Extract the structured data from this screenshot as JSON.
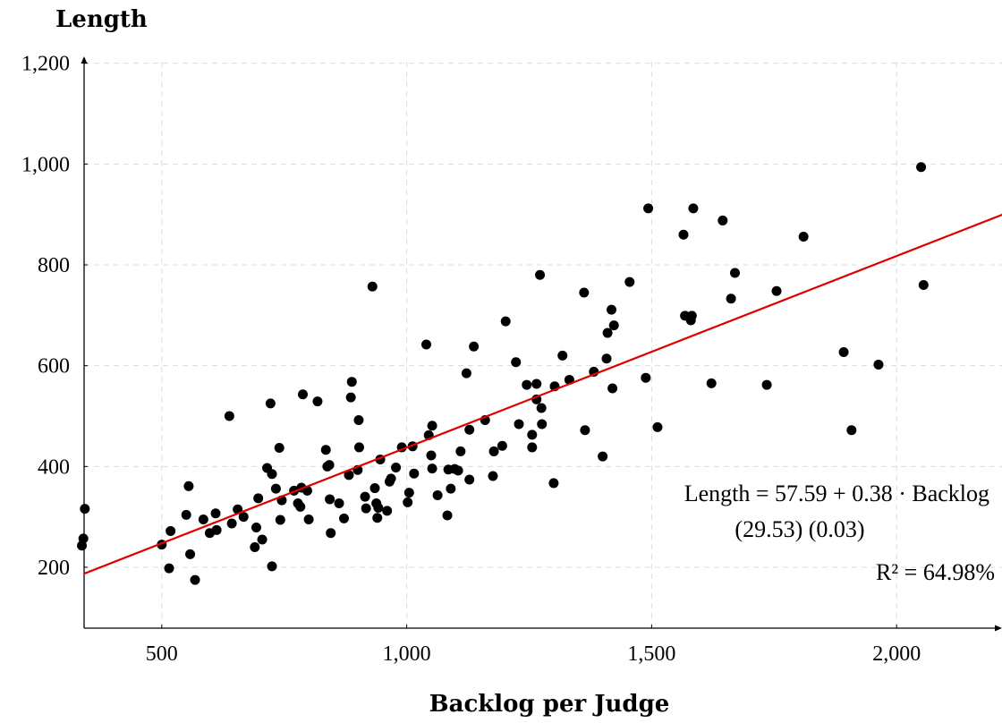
{
  "chart_data": {
    "type": "scatter",
    "title": "",
    "xlabel": "Backlog per Judge",
    "ylabel": "Length",
    "xlim": [
      340,
      2220
    ],
    "ylim": [
      80,
      1200
    ],
    "x_ticks": [
      500,
      1000,
      1500,
      2000
    ],
    "y_ticks": [
      200,
      400,
      600,
      800,
      1000,
      1200
    ],
    "x_tick_labels": [
      "500",
      "1,000",
      "1,500",
      "2,000"
    ],
    "y_tick_labels": [
      "200",
      "400",
      "600",
      "800",
      "1,000",
      "1,200"
    ],
    "grid": true,
    "colors": {
      "points": "#000000",
      "fit_line": "#e00000",
      "grid": "#dcdcdc"
    },
    "fit_line": {
      "intercept": 57.59,
      "slope": 0.38
    },
    "annotations": {
      "equation": "Length = 57.59 + 0.38 · Backlog",
      "std_errors": "(29.53)  (0.03)",
      "r_squared": "R² = 64.98%"
    },
    "points": [
      [
        343,
        316
      ],
      [
        340,
        257
      ],
      [
        337,
        243
      ],
      [
        500,
        245
      ],
      [
        515,
        198
      ],
      [
        518,
        272
      ],
      [
        550,
        304
      ],
      [
        555,
        361
      ],
      [
        558,
        226
      ],
      [
        568,
        175
      ],
      [
        585,
        295
      ],
      [
        598,
        268
      ],
      [
        610,
        307
      ],
      [
        612,
        274
      ],
      [
        638,
        500
      ],
      [
        643,
        287
      ],
      [
        655,
        315
      ],
      [
        667,
        300
      ],
      [
        690,
        240
      ],
      [
        693,
        279
      ],
      [
        697,
        337
      ],
      [
        705,
        255
      ],
      [
        715,
        397
      ],
      [
        722,
        525
      ],
      [
        725,
        385
      ],
      [
        725,
        202
      ],
      [
        733,
        356
      ],
      [
        740,
        437
      ],
      [
        742,
        294
      ],
      [
        745,
        333
      ],
      [
        770,
        352
      ],
      [
        778,
        327
      ],
      [
        783,
        320
      ],
      [
        785,
        358
      ],
      [
        788,
        543
      ],
      [
        797,
        352
      ],
      [
        800,
        295
      ],
      [
        818,
        529
      ],
      [
        835,
        433
      ],
      [
        838,
        400
      ],
      [
        842,
        403
      ],
      [
        843,
        335
      ],
      [
        845,
        268
      ],
      [
        862,
        327
      ],
      [
        872,
        297
      ],
      [
        882,
        383
      ],
      [
        886,
        537
      ],
      [
        888,
        568
      ],
      [
        900,
        393
      ],
      [
        902,
        492
      ],
      [
        903,
        438
      ],
      [
        915,
        340
      ],
      [
        917,
        317
      ],
      [
        930,
        757
      ],
      [
        935,
        357
      ],
      [
        938,
        327
      ],
      [
        940,
        298
      ],
      [
        942,
        318
      ],
      [
        946,
        414
      ],
      [
        960,
        312
      ],
      [
        965,
        370
      ],
      [
        968,
        376
      ],
      [
        978,
        398
      ],
      [
        990,
        438
      ],
      [
        1002,
        329
      ],
      [
        1005,
        348
      ],
      [
        1012,
        440
      ],
      [
        1015,
        386
      ],
      [
        1040,
        642
      ],
      [
        1045,
        462
      ],
      [
        1050,
        422
      ],
      [
        1052,
        396
      ],
      [
        1052,
        481
      ],
      [
        1063,
        343
      ],
      [
        1083,
        303
      ],
      [
        1085,
        394
      ],
      [
        1090,
        356
      ],
      [
        1098,
        395
      ],
      [
        1105,
        392
      ],
      [
        1110,
        430
      ],
      [
        1122,
        585
      ],
      [
        1128,
        473
      ],
      [
        1128,
        374
      ],
      [
        1137,
        638
      ],
      [
        1160,
        492
      ],
      [
        1176,
        381
      ],
      [
        1178,
        430
      ],
      [
        1195,
        441
      ],
      [
        1202,
        688
      ],
      [
        1223,
        607
      ],
      [
        1229,
        484
      ],
      [
        1245,
        562
      ],
      [
        1256,
        463
      ],
      [
        1256,
        438
      ],
      [
        1265,
        564
      ],
      [
        1265,
        533
      ],
      [
        1272,
        780
      ],
      [
        1275,
        516
      ],
      [
        1276,
        484
      ],
      [
        1300,
        367
      ],
      [
        1302,
        559
      ],
      [
        1318,
        620
      ],
      [
        1332,
        572
      ],
      [
        1362,
        745
      ],
      [
        1364,
        472
      ],
      [
        1382,
        588
      ],
      [
        1400,
        420
      ],
      [
        1408,
        614
      ],
      [
        1410,
        665
      ],
      [
        1418,
        711
      ],
      [
        1420,
        555
      ],
      [
        1423,
        680
      ],
      [
        1455,
        766
      ],
      [
        1488,
        576
      ],
      [
        1493,
        912
      ],
      [
        1512,
        478
      ],
      [
        1565,
        860
      ],
      [
        1568,
        699
      ],
      [
        1580,
        690
      ],
      [
        1582,
        699
      ],
      [
        1585,
        912
      ],
      [
        1622,
        565
      ],
      [
        1645,
        888
      ],
      [
        1662,
        733
      ],
      [
        1670,
        784
      ],
      [
        1735,
        562
      ],
      [
        1755,
        748
      ],
      [
        1810,
        856
      ],
      [
        1892,
        627
      ],
      [
        1908,
        472
      ],
      [
        1963,
        602
      ],
      [
        2050,
        994
      ],
      [
        2055,
        760
      ]
    ]
  }
}
